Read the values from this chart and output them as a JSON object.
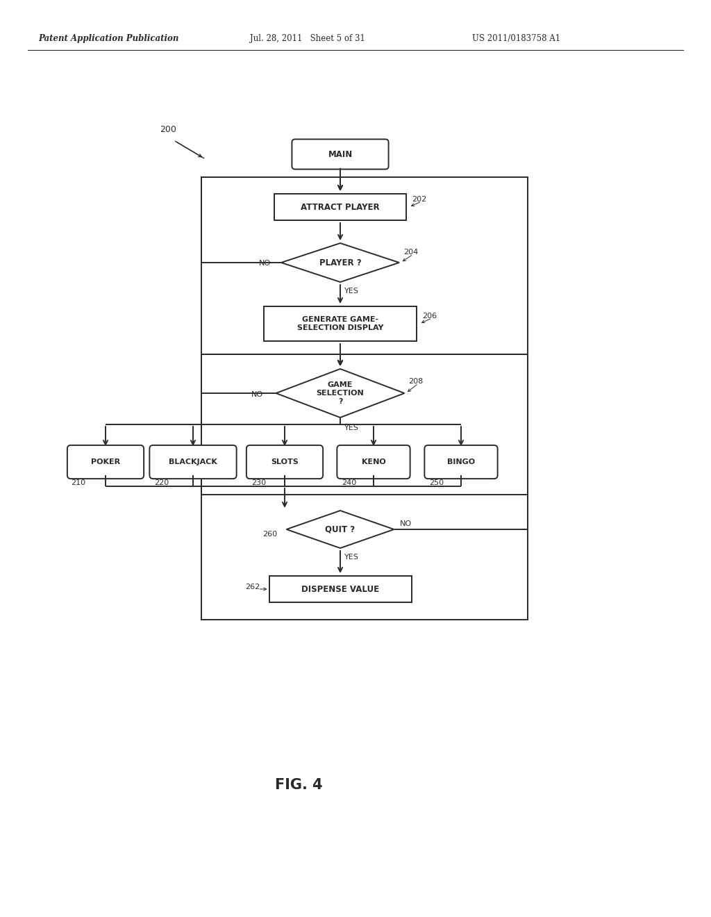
{
  "bg_color": "#ffffff",
  "line_color": "#2a2a2a",
  "header_left": "Patent Application Publication",
  "header_mid": "Jul. 28, 2011   Sheet 5 of 31",
  "header_right": "US 2011/0183758 A1",
  "fig_label": "FIG. 4",
  "diagram_label": "200"
}
